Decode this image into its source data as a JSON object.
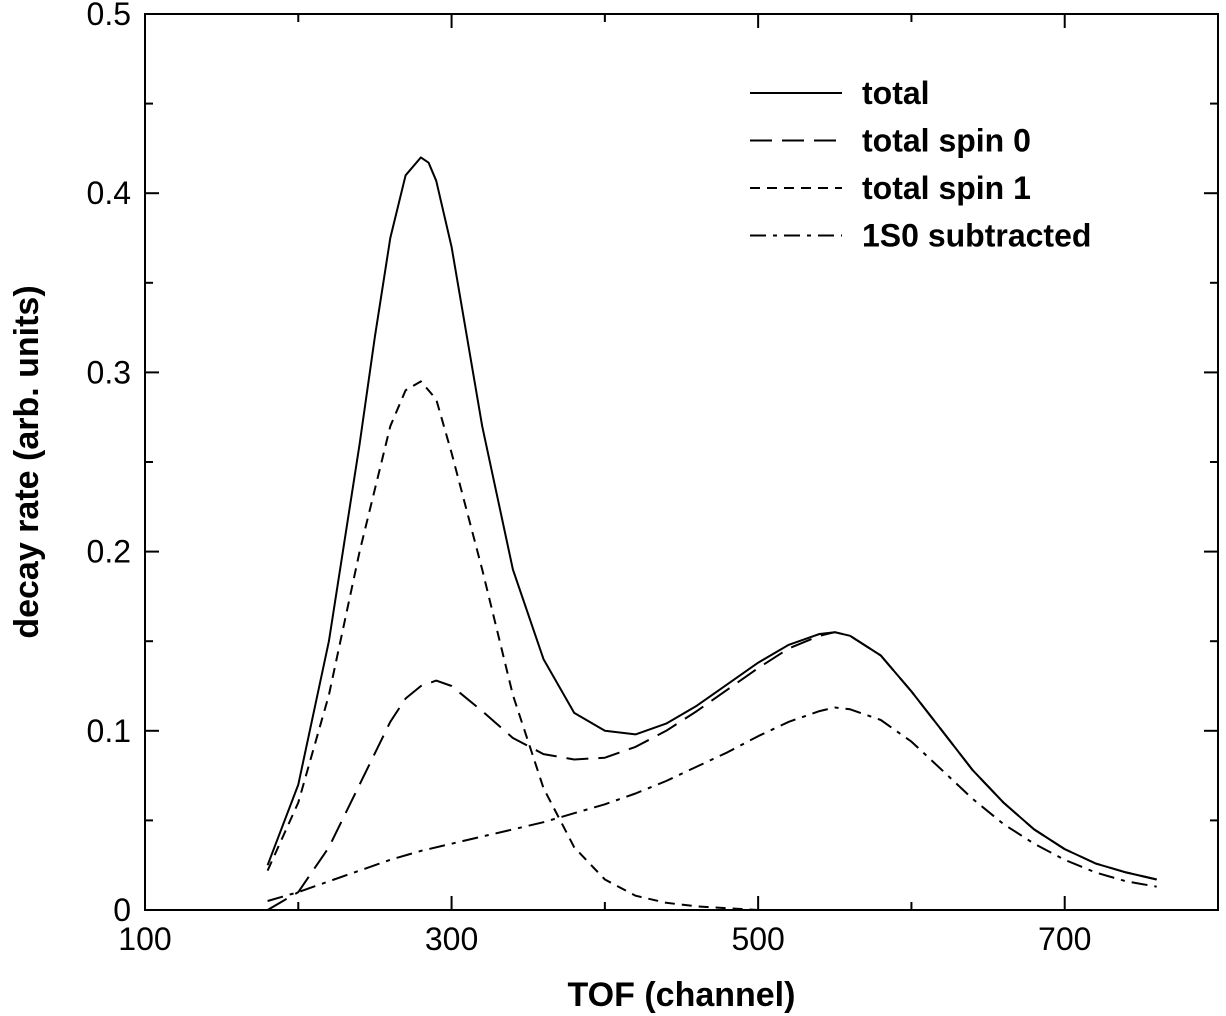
{
  "chart_data": {
    "type": "line",
    "title": "",
    "xlabel": "TOF (channel)",
    "ylabel": "decay rate (arb. units)",
    "xlim": [
      100,
      800
    ],
    "ylim": [
      0,
      0.5
    ],
    "x_ticks": [
      100,
      300,
      500,
      700
    ],
    "x_tick_labels": [
      "100",
      "300",
      "500",
      "700"
    ],
    "y_ticks": [
      0,
      0.1,
      0.2,
      0.3,
      0.4,
      0.5
    ],
    "y_tick_labels": [
      "0",
      "0.1",
      "0.2",
      "0.3",
      "0.4",
      "0.5"
    ],
    "grid": false,
    "legend_position": "top-right",
    "series": [
      {
        "name": "total",
        "style": "solid",
        "x": [
          180,
          200,
          220,
          240,
          250,
          260,
          270,
          280,
          285,
          290,
          300,
          310,
          320,
          340,
          360,
          380,
          400,
          420,
          440,
          460,
          480,
          500,
          520,
          540,
          550,
          560,
          580,
          600,
          620,
          640,
          660,
          680,
          700,
          720,
          740,
          760
        ],
        "y": [
          0.025,
          0.07,
          0.15,
          0.26,
          0.32,
          0.375,
          0.41,
          0.42,
          0.417,
          0.407,
          0.37,
          0.32,
          0.27,
          0.19,
          0.14,
          0.11,
          0.1,
          0.098,
          0.104,
          0.114,
          0.126,
          0.138,
          0.148,
          0.154,
          0.155,
          0.153,
          0.142,
          0.122,
          0.1,
          0.078,
          0.06,
          0.045,
          0.034,
          0.026,
          0.021,
          0.017
        ]
      },
      {
        "name": "total spin 0",
        "style": "long-dash",
        "x": [
          180,
          200,
          220,
          240,
          260,
          270,
          280,
          290,
          300,
          320,
          340,
          360,
          380,
          400,
          420,
          440,
          460,
          480,
          500,
          520,
          540,
          550,
          560,
          580,
          600,
          620,
          640,
          660,
          680,
          700,
          720,
          740,
          760
        ],
        "y": [
          0.0,
          0.01,
          0.035,
          0.07,
          0.105,
          0.118,
          0.125,
          0.128,
          0.125,
          0.111,
          0.096,
          0.087,
          0.084,
          0.085,
          0.091,
          0.1,
          0.111,
          0.123,
          0.135,
          0.146,
          0.153,
          0.155,
          0.153,
          0.142,
          0.122,
          0.1,
          0.078,
          0.06,
          0.045,
          0.034,
          0.026,
          0.021,
          0.017
        ]
      },
      {
        "name": "total spin 1",
        "style": "short-dash",
        "x": [
          180,
          200,
          220,
          240,
          260,
          270,
          280,
          290,
          300,
          320,
          340,
          360,
          380,
          400,
          420,
          440,
          460,
          480,
          500,
          550,
          600,
          650,
          700,
          760
        ],
        "y": [
          0.022,
          0.06,
          0.12,
          0.2,
          0.27,
          0.29,
          0.295,
          0.285,
          0.255,
          0.19,
          0.12,
          0.068,
          0.035,
          0.017,
          0.008,
          0.004,
          0.002,
          0.001,
          0.0,
          0.0,
          0.0,
          0.0,
          0.0,
          0.0
        ]
      },
      {
        "name": "1S0 subtracted",
        "style": "dash-dot",
        "x": [
          180,
          200,
          220,
          240,
          260,
          280,
          300,
          320,
          340,
          360,
          380,
          400,
          420,
          440,
          460,
          480,
          500,
          520,
          540,
          550,
          560,
          580,
          600,
          620,
          640,
          660,
          680,
          700,
          720,
          740,
          760
        ],
        "y": [
          0.005,
          0.01,
          0.016,
          0.022,
          0.028,
          0.033,
          0.037,
          0.041,
          0.045,
          0.049,
          0.054,
          0.059,
          0.065,
          0.072,
          0.08,
          0.088,
          0.097,
          0.105,
          0.111,
          0.113,
          0.112,
          0.106,
          0.094,
          0.078,
          0.062,
          0.048,
          0.037,
          0.028,
          0.021,
          0.016,
          0.013
        ]
      }
    ]
  }
}
